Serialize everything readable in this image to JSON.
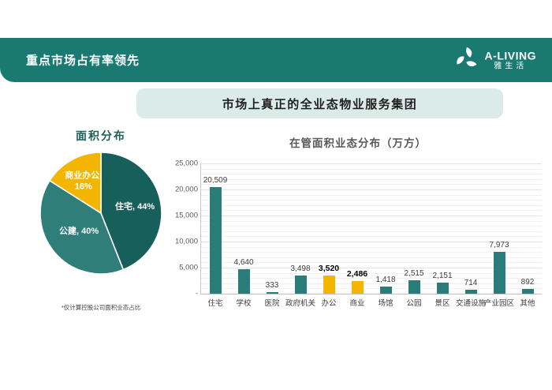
{
  "header": {
    "title": "重点市场占有率领先",
    "logo": {
      "brand": "A-LIVING",
      "brand_cn": "雅生活"
    }
  },
  "banner": {
    "title": "市场上真正的全业态物业服务集团"
  },
  "colors": {
    "header_teal": "#1A7A72",
    "banner_bg": "#DBECE8",
    "pie_dark_teal": "#175F5A",
    "pie_mid_teal": "#2F7E79",
    "accent_yellow": "#F2B600",
    "bar_teal": "#2A7C78"
  },
  "chart_data": [
    {
      "type": "pie",
      "title": "面积分布",
      "footnote": "*仅计算控股公司面积业态占比",
      "direction": "clockwise",
      "start_angle_deg": 0,
      "slices": [
        {
          "label": "住宅",
          "value": 44,
          "color": "#175F5A",
          "label_text": "住宅, 44%"
        },
        {
          "label": "公建",
          "value": 40,
          "color": "#2F7E79",
          "label_text": "公建, 40%"
        },
        {
          "label": "商业办公",
          "value": 16,
          "color": "#F2B600",
          "label_text": "商业办公, 16%"
        }
      ]
    },
    {
      "type": "bar",
      "title": "在管面积业态分布（万方）",
      "categories": [
        "住宅",
        "学校",
        "医院",
        "政府机关",
        "办公",
        "商业",
        "场馆",
        "公园",
        "景区",
        "交通设施",
        "产业园区",
        "其他"
      ],
      "values": [
        20509,
        4640,
        333,
        3498,
        3520,
        2486,
        1418,
        2515,
        2151,
        714,
        7973,
        892
      ],
      "value_labels": [
        "20,509",
        "4,640",
        "333",
        "3,498",
        "3,520",
        "2,486",
        "1,418",
        "2,515",
        "2,151",
        "714",
        "7,973",
        "892"
      ],
      "highlight_indices": [
        4,
        5
      ],
      "bar_color": "#2A7C78",
      "highlight_color": "#F2B600",
      "ylim": [
        0,
        25000
      ],
      "ytick_values": [
        25000,
        20000,
        15000,
        10000,
        5000,
        0
      ],
      "ytick_labels": [
        "25,000",
        "20,000",
        "15,000",
        "10,000",
        "5,000",
        "-"
      ],
      "grid_step": 1000,
      "grid": true,
      "legend": false
    }
  ]
}
